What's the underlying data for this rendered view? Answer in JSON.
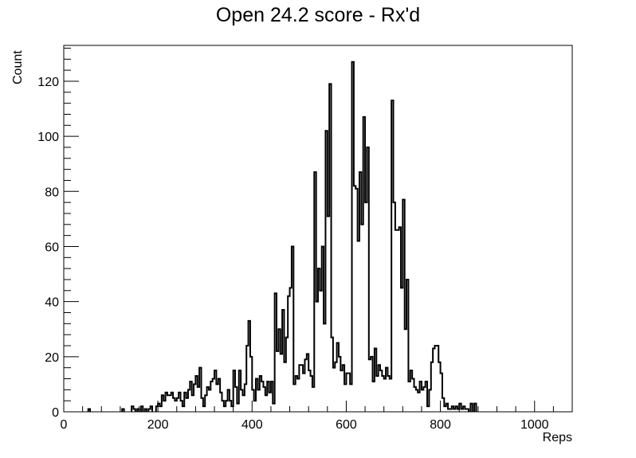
{
  "chart_data": {
    "type": "bar",
    "title": "Open 24.2 score - Rx'd",
    "xlabel": "Reps",
    "ylabel": "Count",
    "xlim": [
      0,
      1080
    ],
    "ylim": [
      0,
      133
    ],
    "bin_width": 4,
    "x_ticks": [
      0,
      200,
      400,
      600,
      800,
      1000
    ],
    "y_ticks": [
      0,
      20,
      40,
      60,
      80,
      100,
      120
    ],
    "grid": false,
    "bins": [
      [
        52,
        1
      ],
      [
        124,
        1
      ],
      [
        144,
        2
      ],
      [
        148,
        1
      ],
      [
        156,
        1
      ],
      [
        164,
        2
      ],
      [
        172,
        1
      ],
      [
        180,
        1
      ],
      [
        184,
        2
      ],
      [
        196,
        2
      ],
      [
        200,
        3
      ],
      [
        204,
        2
      ],
      [
        208,
        6
      ],
      [
        212,
        4
      ],
      [
        216,
        7
      ],
      [
        220,
        6
      ],
      [
        224,
        6
      ],
      [
        228,
        7
      ],
      [
        232,
        5
      ],
      [
        236,
        4
      ],
      [
        240,
        5
      ],
      [
        244,
        7
      ],
      [
        248,
        4
      ],
      [
        252,
        2
      ],
      [
        256,
        7
      ],
      [
        260,
        5
      ],
      [
        264,
        8
      ],
      [
        268,
        11
      ],
      [
        272,
        6
      ],
      [
        276,
        10
      ],
      [
        280,
        13
      ],
      [
        284,
        9
      ],
      [
        288,
        16
      ],
      [
        292,
        5
      ],
      [
        296,
        2
      ],
      [
        300,
        6
      ],
      [
        304,
        9
      ],
      [
        308,
        8
      ],
      [
        312,
        11
      ],
      [
        316,
        12
      ],
      [
        320,
        15
      ],
      [
        324,
        10
      ],
      [
        328,
        12
      ],
      [
        332,
        7
      ],
      [
        336,
        4
      ],
      [
        340,
        2
      ],
      [
        344,
        4
      ],
      [
        348,
        8
      ],
      [
        352,
        4
      ],
      [
        356,
        2
      ],
      [
        360,
        15
      ],
      [
        364,
        9
      ],
      [
        368,
        3
      ],
      [
        372,
        15
      ],
      [
        376,
        8
      ],
      [
        380,
        6
      ],
      [
        384,
        10
      ],
      [
        388,
        24
      ],
      [
        392,
        33
      ],
      [
        396,
        20
      ],
      [
        400,
        8
      ],
      [
        404,
        4
      ],
      [
        408,
        12
      ],
      [
        412,
        8
      ],
      [
        416,
        13
      ],
      [
        420,
        11
      ],
      [
        424,
        9
      ],
      [
        428,
        6
      ],
      [
        432,
        11
      ],
      [
        436,
        7
      ],
      [
        440,
        11
      ],
      [
        444,
        3
      ],
      [
        448,
        43
      ],
      [
        452,
        22
      ],
      [
        456,
        30
      ],
      [
        460,
        21
      ],
      [
        464,
        37
      ],
      [
        468,
        18
      ],
      [
        472,
        27
      ],
      [
        476,
        42
      ],
      [
        480,
        45
      ],
      [
        484,
        60
      ],
      [
        488,
        10
      ],
      [
        492,
        13
      ],
      [
        496,
        12
      ],
      [
        500,
        17
      ],
      [
        504,
        17
      ],
      [
        508,
        14
      ],
      [
        512,
        19
      ],
      [
        516,
        21
      ],
      [
        520,
        15
      ],
      [
        524,
        13
      ],
      [
        528,
        9
      ],
      [
        532,
        87
      ],
      [
        536,
        40
      ],
      [
        540,
        52
      ],
      [
        544,
        44
      ],
      [
        548,
        60
      ],
      [
        552,
        32
      ],
      [
        556,
        102
      ],
      [
        560,
        71
      ],
      [
        564,
        119
      ],
      [
        568,
        27
      ],
      [
        572,
        16
      ],
      [
        576,
        18
      ],
      [
        580,
        25
      ],
      [
        584,
        20
      ],
      [
        588,
        15
      ],
      [
        592,
        17
      ],
      [
        596,
        10
      ],
      [
        600,
        14
      ],
      [
        604,
        14
      ],
      [
        608,
        10
      ],
      [
        612,
        127
      ],
      [
        616,
        82
      ],
      [
        620,
        81
      ],
      [
        624,
        62
      ],
      [
        628,
        87
      ],
      [
        632,
        68
      ],
      [
        636,
        107
      ],
      [
        640,
        76
      ],
      [
        644,
        96
      ],
      [
        648,
        19
      ],
      [
        652,
        20
      ],
      [
        656,
        11
      ],
      [
        660,
        23
      ],
      [
        664,
        13
      ],
      [
        668,
        17
      ],
      [
        672,
        15
      ],
      [
        676,
        13
      ],
      [
        680,
        12
      ],
      [
        684,
        16
      ],
      [
        688,
        13
      ],
      [
        692,
        12
      ],
      [
        696,
        113
      ],
      [
        700,
        76
      ],
      [
        704,
        66
      ],
      [
        708,
        66
      ],
      [
        712,
        67
      ],
      [
        716,
        45
      ],
      [
        720,
        77
      ],
      [
        724,
        30
      ],
      [
        728,
        48
      ],
      [
        732,
        11
      ],
      [
        736,
        15
      ],
      [
        740,
        12
      ],
      [
        744,
        9
      ],
      [
        748,
        8
      ],
      [
        752,
        7
      ],
      [
        756,
        11
      ],
      [
        760,
        8
      ],
      [
        764,
        9
      ],
      [
        768,
        11
      ],
      [
        772,
        2
      ],
      [
        776,
        8
      ],
      [
        780,
        18
      ],
      [
        784,
        23
      ],
      [
        788,
        24
      ],
      [
        792,
        24
      ],
      [
        796,
        18
      ],
      [
        800,
        14
      ],
      [
        804,
        5
      ],
      [
        808,
        2
      ],
      [
        812,
        3
      ],
      [
        816,
        1
      ],
      [
        820,
        1
      ],
      [
        824,
        2
      ],
      [
        828,
        1
      ],
      [
        832,
        2
      ],
      [
        836,
        1
      ],
      [
        840,
        3
      ],
      [
        844,
        1
      ],
      [
        848,
        2
      ],
      [
        852,
        1
      ],
      [
        856,
        1
      ],
      [
        864,
        3
      ],
      [
        872,
        3
      ]
    ]
  }
}
